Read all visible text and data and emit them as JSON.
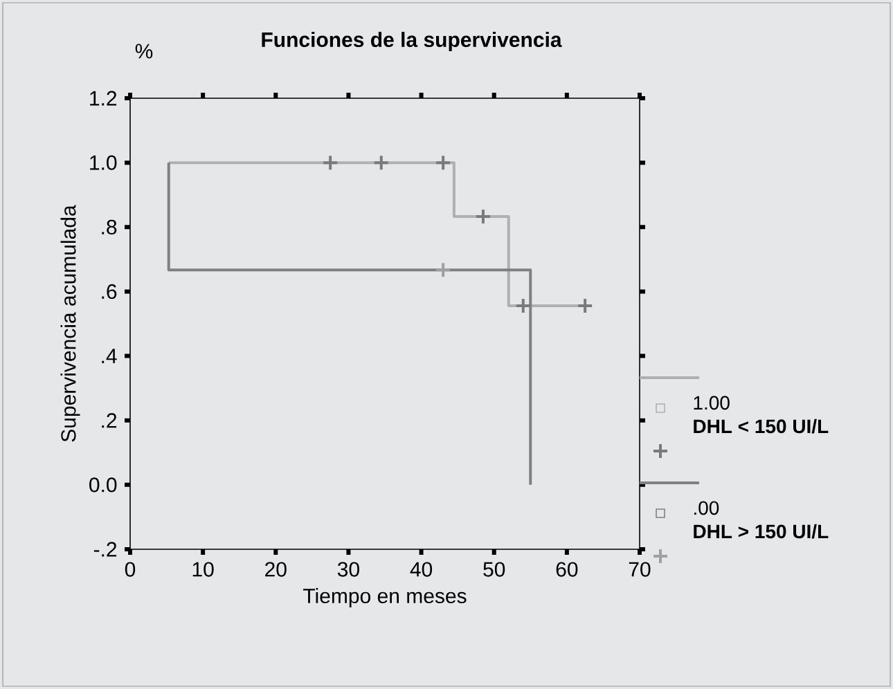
{
  "chart_data": {
    "type": "step",
    "title": "Funciones de la supervivencia",
    "xlabel": "Tiempo en meses",
    "ylabel": "Supervivencia acumulada",
    "annotations": [
      "%"
    ],
    "xlim": [
      0,
      70
    ],
    "xticks": [
      0,
      10,
      20,
      30,
      40,
      50,
      60,
      70
    ],
    "ylim": [
      -0.2,
      1.2
    ],
    "yticks": [
      {
        "value": -0.2,
        "label": "-.2"
      },
      {
        "value": 0,
        "label": "0.0"
      },
      {
        "value": 0.2,
        "label": ".2"
      },
      {
        "value": 0.4,
        "label": ".4"
      },
      {
        "value": 0.6,
        "label": ".6"
      },
      {
        "value": 0.8,
        "label": ".8"
      },
      {
        "value": 1.0,
        "label": "1.0"
      },
      {
        "value": 1.2,
        "label": "1.2"
      }
    ],
    "legend": "right",
    "grid": false,
    "series": [
      {
        "name": "1.00 **DHL < 150 UI/L**",
        "color": "#b0b0b0",
        "x": [
          5.3,
          44.5,
          52,
          62.5
        ],
        "values": [
          1.0,
          0.833,
          0.556,
          0.556
        ]
      },
      {
        "type": "scatter",
        "marker": "cross",
        "color": "#7a7a7a",
        "x": [
          27.5,
          34.5,
          43,
          48.5,
          54,
          62.5
        ],
        "values": [
          1.0,
          1.0,
          1.0,
          0.833,
          0.556,
          0.556
        ]
      },
      {
        "name": ".00 **DHL > 150 UI/L**",
        "color": "#808080",
        "x": [
          5.3,
          5.3,
          55
        ],
        "values": [
          1.0,
          0.667,
          0.0
        ]
      },
      {
        "type": "scatter",
        "marker": "cross",
        "color": "#a0a0a0",
        "x": [
          43
        ],
        "values": [
          0.667
        ]
      }
    ]
  }
}
